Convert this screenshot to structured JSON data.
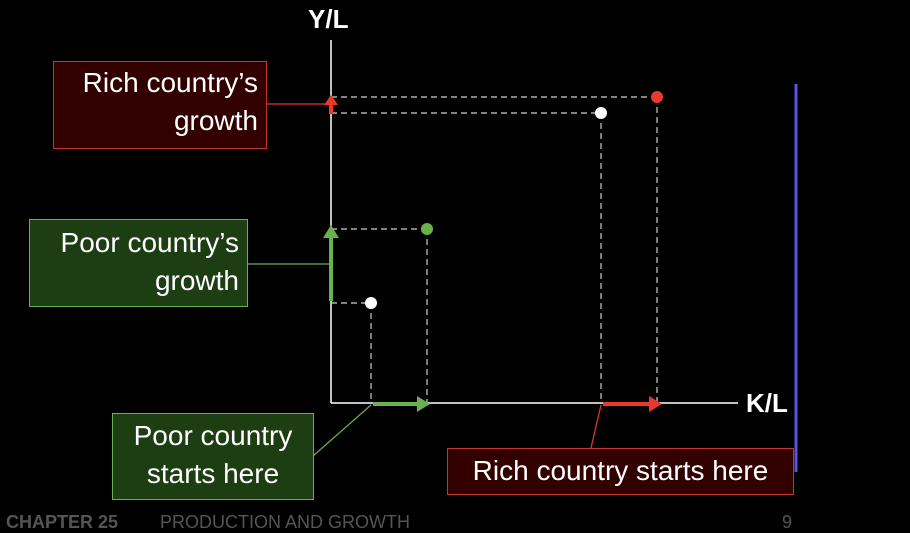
{
  "axes": {
    "y_label": "Y/L",
    "x_label": "K/L"
  },
  "labels": {
    "rich_growth": [
      "Rich country’s",
      "growth"
    ],
    "poor_growth": [
      "Poor country’s",
      "growth"
    ],
    "poor_start": [
      "Poor country",
      "starts here"
    ],
    "rich_start": "Rich country starts here"
  },
  "footer": {
    "chapter": "CHAPTER 25",
    "title": "PRODUCTION AND GROWTH",
    "page": "9"
  },
  "colors": {
    "rich": "#e8392a",
    "poor": "#6ab04c",
    "start_point": "#ffffff",
    "divider": "#5555dd"
  }
}
